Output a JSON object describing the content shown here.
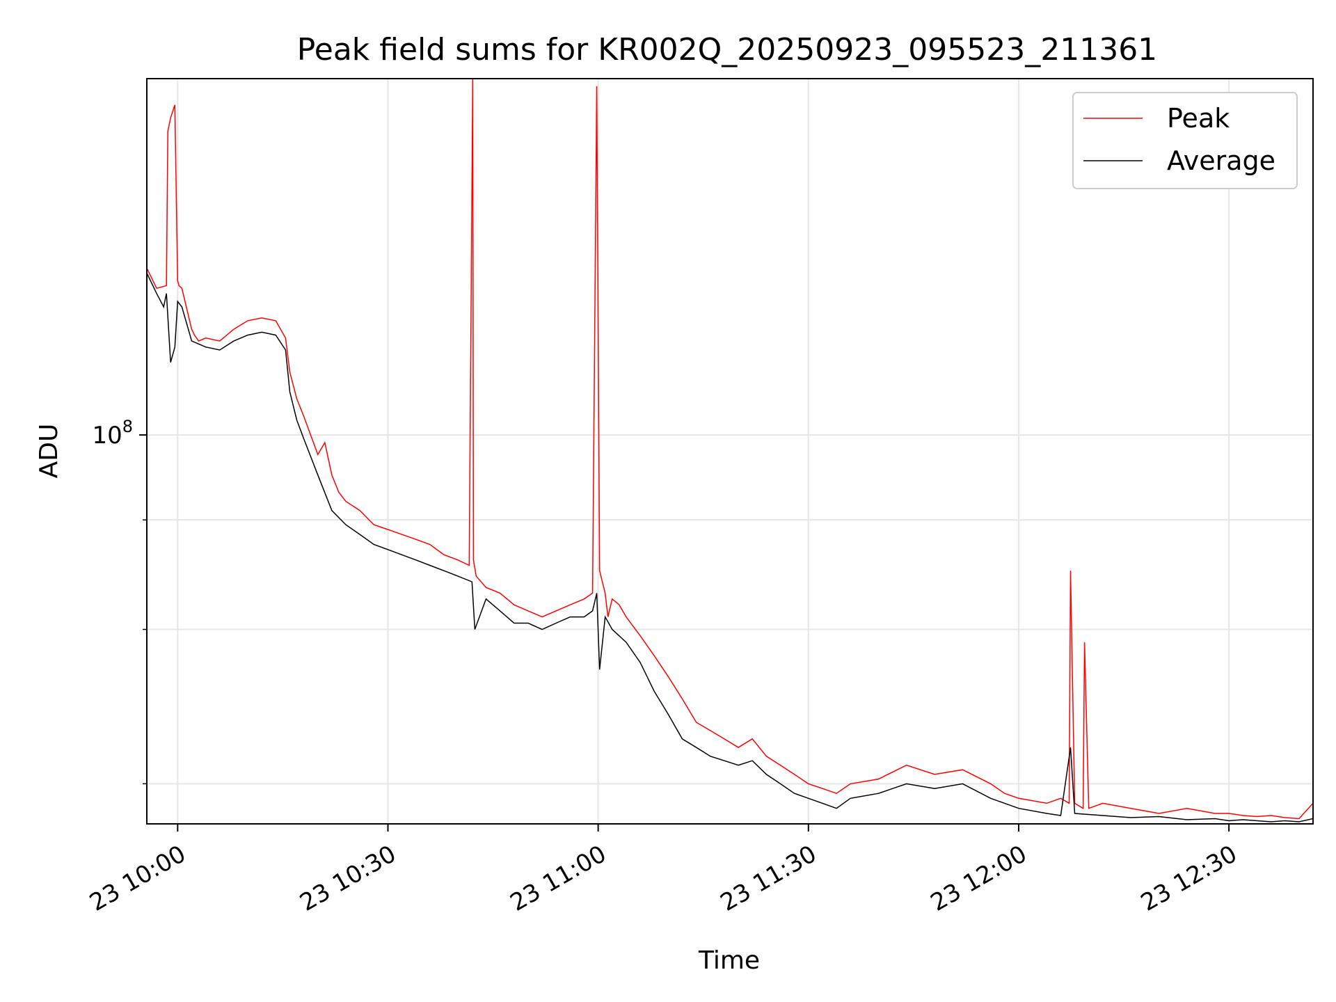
{
  "chart_data": {
    "type": "line",
    "title": "Peak field sums for KR002Q_20250923_095523_211361",
    "xlabel": "Time",
    "ylabel": "ADU",
    "yscale": "log",
    "ylim": [
      36000000,
      255000000
    ],
    "xlim_minutes": [
      -2.2,
      81.0
    ],
    "x_unit": "minutes after 23 10:00",
    "x_ticks": [
      {
        "value": 0,
        "label": "23 10:00"
      },
      {
        "value": 15,
        "label": "23 10:30"
      },
      {
        "value": 30,
        "label": "23 11:00"
      },
      {
        "value": 45,
        "label": "23 11:30"
      },
      {
        "value": 60,
        "label": "23 12:00"
      },
      {
        "value": 75,
        "label": "23 12:30"
      }
    ],
    "y_major_ticks": [
      {
        "value": 100000000,
        "base": "10",
        "exponent": "8"
      }
    ],
    "y_minor_ticks": [
      80000000,
      60000000,
      40000000
    ],
    "grid": true,
    "legend_position": "upper right",
    "legend": [
      "Peak",
      "Average"
    ],
    "colors": {
      "peak": "#ff0000",
      "average": "#000000"
    },
    "series": [
      {
        "name": "Peak",
        "color": "#ff0000",
        "x": [
          -2.2,
          -1.5,
          -0.8,
          -0.7,
          -0.5,
          -0.2,
          0.0,
          0.1,
          0.3,
          1.0,
          1.2,
          1.5,
          2.0,
          3.0,
          4.0,
          5.0,
          6.0,
          7.0,
          7.7,
          8.0,
          8.5,
          9.0,
          10.0,
          10.5,
          11.0,
          11.5,
          12.0,
          13.0,
          14.0,
          15.0,
          16.0,
          17.0,
          18.0,
          19.0,
          20.0,
          20.8,
          21.05,
          21.1,
          21.3,
          22.0,
          23.0,
          24.0,
          25.0,
          26.0,
          27.0,
          28.0,
          29.0,
          29.6,
          29.9,
          30.1,
          30.5,
          30.7,
          31.0,
          31.5,
          32.0,
          33.0,
          34.0,
          35.0,
          36.0,
          37.0,
          38.0,
          39.0,
          40.0,
          41.0,
          42.0,
          43.0,
          44.0,
          45.0,
          46.0,
          47.0,
          48.0,
          50.0,
          52.0,
          54.0,
          56.0,
          58.0,
          59.0,
          60.0,
          62.0,
          63.0,
          63.6,
          63.7,
          64.0,
          64.6,
          64.7,
          65.0,
          66.0,
          68.0,
          70.0,
          72.0,
          74.0,
          75.0,
          76.0,
          77.0,
          78.0,
          79.0,
          80.0,
          81.0
        ],
        "values": [
          155000000,
          147000000,
          148000000,
          222000000,
          230000000,
          238000000,
          150000000,
          148000000,
          147000000,
          132000000,
          130000000,
          128000000,
          129000000,
          128000000,
          132000000,
          135000000,
          136000000,
          135000000,
          129000000,
          118000000,
          110000000,
          105000000,
          95000000,
          98000000,
          90000000,
          86000000,
          84000000,
          82000000,
          79000000,
          78000000,
          77000000,
          76000000,
          75000000,
          73000000,
          72000000,
          71000000,
          255000000,
          72000000,
          69000000,
          67000000,
          66000000,
          64000000,
          63000000,
          62000000,
          63000000,
          64000000,
          65000000,
          66000000,
          250000000,
          70000000,
          66000000,
          62000000,
          65000000,
          64000000,
          62000000,
          59000000,
          56000000,
          53000000,
          50000000,
          47000000,
          46000000,
          45000000,
          44000000,
          45000000,
          43000000,
          42000000,
          41000000,
          40000000,
          39500000,
          39000000,
          40000000,
          40500000,
          42000000,
          41000000,
          41500000,
          40000000,
          39000000,
          38500000,
          38000000,
          38500000,
          38000000,
          70000000,
          38000000,
          37500000,
          58000000,
          37500000,
          38000000,
          37500000,
          37000000,
          37500000,
          37000000,
          37000000,
          36800000,
          36700000,
          36800000,
          36600000,
          36500000,
          38000000
        ]
      },
      {
        "name": "Average",
        "color": "#000000",
        "x": [
          -2.2,
          -1.5,
          -1.0,
          -0.8,
          -0.5,
          -0.2,
          0.0,
          0.3,
          1.0,
          2.0,
          3.0,
          4.0,
          5.0,
          6.0,
          7.0,
          7.7,
          8.0,
          8.5,
          9.0,
          10.0,
          11.0,
          12.0,
          13.0,
          14.0,
          15.0,
          16.0,
          17.0,
          18.0,
          19.0,
          20.0,
          21.0,
          21.2,
          22.0,
          23.0,
          24.0,
          25.0,
          26.0,
          27.0,
          28.0,
          29.0,
          29.6,
          29.9,
          30.1,
          30.5,
          31.0,
          32.0,
          33.0,
          34.0,
          35.0,
          36.0,
          37.0,
          38.0,
          39.0,
          40.0,
          41.0,
          42.0,
          43.0,
          44.0,
          45.0,
          46.0,
          47.0,
          48.0,
          50.0,
          52.0,
          54.0,
          56.0,
          58.0,
          59.0,
          60.0,
          62.0,
          63.0,
          63.7,
          64.0,
          66.0,
          68.0,
          70.0,
          72.0,
          74.0,
          75.0,
          76.0,
          77.0,
          78.0,
          79.0,
          80.0,
          81.0
        ],
        "values": [
          153000000,
          145000000,
          140000000,
          145000000,
          121000000,
          126000000,
          142000000,
          140000000,
          128000000,
          126000000,
          125000000,
          128000000,
          130000000,
          131000000,
          130000000,
          125000000,
          112000000,
          104000000,
          99000000,
          90000000,
          82000000,
          79000000,
          77000000,
          75000000,
          74000000,
          73000000,
          72000000,
          71000000,
          70000000,
          69000000,
          68000000,
          60000000,
          65000000,
          63000000,
          61000000,
          61000000,
          60000000,
          61000000,
          62000000,
          62000000,
          63000000,
          66000000,
          54000000,
          62000000,
          60000000,
          58000000,
          55000000,
          51000000,
          48000000,
          45000000,
          44000000,
          43000000,
          42500000,
          42000000,
          42500000,
          41000000,
          40000000,
          39000000,
          38500000,
          38000000,
          37500000,
          38500000,
          39000000,
          40000000,
          39500000,
          40000000,
          38500000,
          38000000,
          37500000,
          37000000,
          36800000,
          44000000,
          37000000,
          36800000,
          36600000,
          36700000,
          36400000,
          36500000,
          36300000,
          36400000,
          36300000,
          36200000,
          36300000,
          36200000,
          36500000
        ]
      }
    ]
  }
}
